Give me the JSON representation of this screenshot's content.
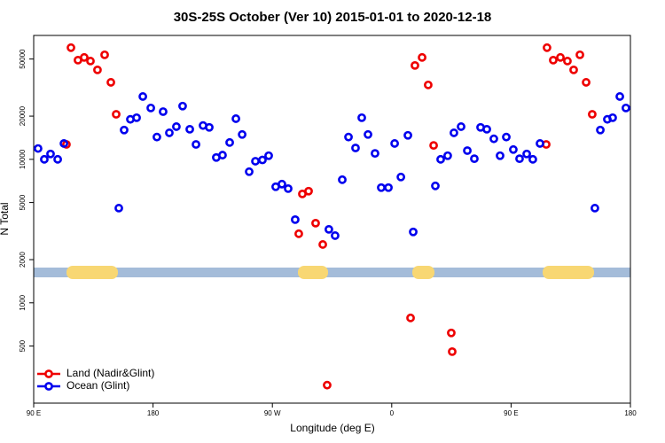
{
  "chart_data": {
    "type": "scatter",
    "log_y": true,
    "title": "30S-25S October (Ver 10)   2015-01-01 to 2020-12-18",
    "x_label": "Longitude (deg E)",
    "y_label": "N Total",
    "xlim": [
      90,
      540
    ],
    "ylim": [
      200,
      73000
    ],
    "xticks": [
      {
        "value": 90,
        "label": "90 E"
      },
      180,
      {
        "value": 270,
        "label": "90 W"
      },
      {
        "value": 360,
        "label": "0"
      },
      {
        "value": 450,
        "label": "90 E"
      },
      {
        "value": 540,
        "label": "180"
      }
    ],
    "yticks": [
      500,
      1000,
      2000,
      5000,
      10000,
      20000,
      50000
    ],
    "legend": "bottom-left",
    "series": [
      {
        "name": "Land (Nadir&Glint)",
        "color": "#ee0000",
        "x": [
          114.7,
          118.1,
          123.4,
          128.1,
          132.8,
          138.1,
          143.5,
          148.2,
          152.2,
          289.9,
          292.6,
          297.3,
          302.6,
          308.0,
          311.3,
          374.2,
          377.5,
          382.9,
          387.5,
          391.6,
          404.9,
          405.6,
          476.5,
          477.1,
          481.8,
          487.2,
          492.5,
          497.2,
          501.9,
          506.6,
          511.2
        ],
        "values": [
          12700,
          60000,
          49100,
          51300,
          48400,
          42000,
          53500,
          34400,
          20600,
          3030,
          5740,
          6000,
          3590,
          2550,
          267,
          785,
          45100,
          51300,
          33000,
          12500,
          617,
          457,
          12700,
          60000,
          49100,
          51300,
          48400,
          42000,
          53500,
          34400,
          20600
        ]
      },
      {
        "name": "Ocean (Glint)",
        "color": "#0000ee",
        "x": [
          93.3,
          98.0,
          102.7,
          108.1,
          112.8,
          154.2,
          158.2,
          162.9,
          167.6,
          172.3,
          178.3,
          182.9,
          187.6,
          192.3,
          197.6,
          202.3,
          207.7,
          212.4,
          217.7,
          222.4,
          227.7,
          232.4,
          237.8,
          242.5,
          247.2,
          252.5,
          257.2,
          262.5,
          267.2,
          272.5,
          277.2,
          281.9,
          287.2,
          312.6,
          317.3,
          322.7,
          327.4,
          332.7,
          337.4,
          342.1,
          347.4,
          352.1,
          357.5,
          362.2,
          366.9,
          372.2,
          376.2,
          392.9,
          396.9,
          402.2,
          406.9,
          412.3,
          417.0,
          422.3,
          427.0,
          431.7,
          437.0,
          441.7,
          446.4,
          451.7,
          456.4,
          461.8,
          466.4,
          471.8,
          513.2,
          517.3,
          522.6,
          526.6,
          532.0,
          536.6
        ],
        "values": [
          11900,
          10000,
          10900,
          10000,
          12900,
          4570,
          16000,
          19000,
          19500,
          27400,
          22800,
          14300,
          21500,
          15300,
          16900,
          23500,
          16200,
          12700,
          17200,
          16700,
          10300,
          10700,
          13100,
          19200,
          14900,
          8200,
          9700,
          9900,
          10600,
          6440,
          6720,
          6250,
          3800,
          3250,
          2940,
          7210,
          14300,
          12000,
          19500,
          14900,
          11000,
          6350,
          6350,
          12900,
          7530,
          14700,
          3120,
          6530,
          10000,
          10600,
          15300,
          16900,
          11500,
          10100,
          16700,
          16200,
          13900,
          10600,
          14300,
          11700,
          10100,
          10900,
          10000,
          12900,
          4570,
          16000,
          19000,
          19500,
          27400,
          22800
        ]
      }
    ]
  }
}
